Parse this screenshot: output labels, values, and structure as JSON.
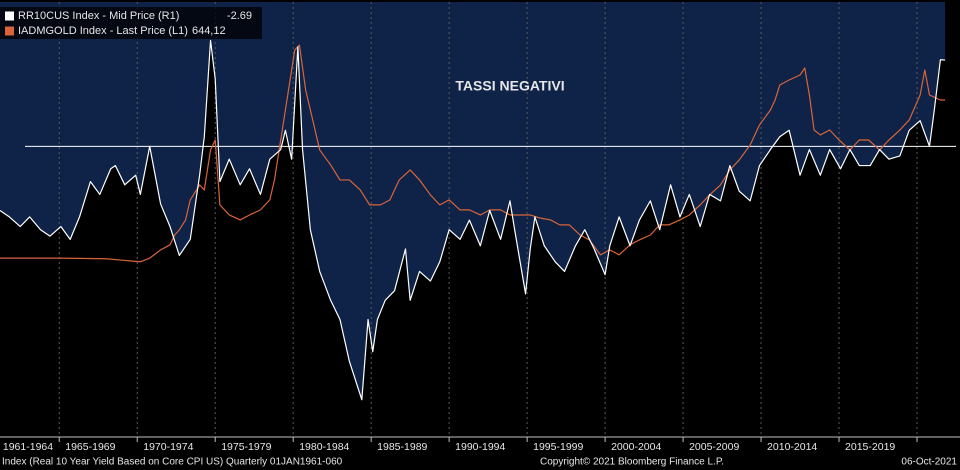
{
  "chart_data": {
    "type": "line",
    "annotation": "TASSI NEGATIVI",
    "footer_left": "Index (Real 10 Year Yield Based on Core CPI US)  Quarterly 01JAN1961-060",
    "footer_center": "Copyright© 2021 Bloomberg Finance L.P.",
    "footer_right": "06-Oct-2021",
    "xlim": [
      1961.2,
      2022.5
    ],
    "xticks": [
      {
        "value": 1961,
        "label": "1961-1964"
      },
      {
        "value": 1965,
        "label": "1965-1969"
      },
      {
        "value": 1970,
        "label": "1970-1974"
      },
      {
        "value": 1975,
        "label": "1975-1979"
      },
      {
        "value": 1980,
        "label": "1980-1984"
      },
      {
        "value": 1985,
        "label": "1985-1989"
      },
      {
        "value": 1990,
        "label": "1990-1994"
      },
      {
        "value": 1995,
        "label": "1995-1999"
      },
      {
        "value": 2000,
        "label": "2000-2004"
      },
      {
        "value": 2005,
        "label": "2005-2009"
      },
      {
        "value": 2010,
        "label": "2010-2014"
      },
      {
        "value": 2015,
        "label": "2015-2019"
      },
      {
        "value": 2020,
        "label": ""
      }
    ],
    "ylim": [
      0.16,
      7300
    ],
    "ylog": true,
    "y2lim": [
      9,
      -4.5
    ],
    "hline": 0,
    "grid": true,
    "legend": "top-left",
    "shade_color": "#0e2347",
    "series": [
      {
        "name": "RR10CUS Index - Mid Price (R1)",
        "color": "#ffffff",
        "axis": "y2",
        "shade": true,
        "last": -2.69,
        "x": [
          1961.2,
          1961.8,
          1962.5,
          1963.1,
          1963.8,
          1964.4,
          1965.1,
          1965.7,
          1966.3,
          1967.0,
          1967.6,
          1968.3,
          1968.6,
          1969.2,
          1969.9,
          1970.2,
          1970.8,
          1971.5,
          1972.1,
          1972.7,
          1973.4,
          1974.0,
          1974.3,
          1974.7,
          1975.0,
          1975.3,
          1975.9,
          1976.6,
          1977.2,
          1977.9,
          1978.5,
          1979.2,
          1979.5,
          1979.9,
          1980.3,
          1980.6,
          1981.1,
          1981.7,
          1982.4,
          1983.0,
          1983.6,
          1984.0,
          1984.4,
          1984.8,
          1985.1,
          1985.4,
          1985.9,
          1986.5,
          1987.2,
          1987.5,
          1988.1,
          1988.8,
          1989.4,
          1990.0,
          1990.7,
          1991.3,
          1992.0,
          1992.6,
          1993.3,
          1993.9,
          1994.2,
          1994.9,
          1995.2,
          1995.5,
          1996.1,
          1996.8,
          1997.4,
          1998.1,
          1998.7,
          1999.3,
          2000.0,
          2000.3,
          2000.9,
          2001.6,
          2002.2,
          2002.9,
          2003.5,
          2004.2,
          2004.8,
          2005.4,
          2006.1,
          2006.7,
          2007.4,
          2008.0,
          2008.6,
          2009.3,
          2009.9,
          2010.6,
          2011.2,
          2011.8,
          2012.5,
          2013.1,
          2013.8,
          2014.4,
          2015.1,
          2015.7,
          2016.3,
          2017.0,
          2017.6,
          2018.2,
          2018.9,
          2019.5,
          2020.2,
          2020.8,
          2021.1,
          2021.5,
          2021.8
        ],
        "values": [
          2.0,
          2.2,
          2.5,
          2.2,
          2.6,
          2.8,
          2.5,
          2.9,
          2.2,
          1.1,
          1.5,
          0.7,
          0.6,
          1.2,
          0.9,
          1.5,
          0.0,
          1.8,
          2.5,
          3.4,
          2.9,
          0.9,
          -0.3,
          -3.3,
          -2.1,
          1.1,
          0.4,
          1.2,
          0.7,
          1.5,
          0.4,
          0.1,
          -0.5,
          0.4,
          -3.1,
          0.1,
          2.6,
          3.9,
          4.8,
          5.4,
          6.7,
          7.3,
          7.9,
          5.4,
          6.4,
          5.4,
          4.8,
          4.5,
          3.2,
          4.8,
          3.9,
          4.2,
          3.6,
          2.6,
          2.9,
          2.3,
          3.1,
          2.0,
          2.9,
          1.7,
          2.6,
          4.6,
          3.2,
          2.2,
          3.1,
          3.6,
          3.9,
          3.1,
          2.6,
          3.2,
          4.0,
          3.1,
          2.2,
          3.1,
          2.3,
          1.7,
          2.6,
          1.2,
          2.2,
          1.5,
          2.5,
          1.5,
          1.7,
          0.6,
          1.4,
          1.7,
          0.6,
          0.1,
          -0.3,
          -0.5,
          0.9,
          0.1,
          0.9,
          0.1,
          0.7,
          0.1,
          0.6,
          0.6,
          0.1,
          0.4,
          0.3,
          -0.5,
          -0.8,
          0.0,
          -1.1,
          -2.7,
          -2.69
        ]
      },
      {
        "name": "IADMGOLD Index - Last Price (L1)",
        "color": "#d9643a",
        "axis": "y",
        "last": 644.12,
        "last_label": "644,12",
        "x": [
          1961.2,
          1965.0,
          1968.0,
          1970.2,
          1970.8,
          1971.5,
          1972.1,
          1972.4,
          1972.7,
          1973.1,
          1973.4,
          1974.0,
          1974.3,
          1974.7,
          1975.0,
          1975.3,
          1975.9,
          1976.6,
          1977.2,
          1977.9,
          1978.5,
          1978.8,
          1979.2,
          1979.5,
          1979.8,
          1980.1,
          1980.4,
          1980.8,
          1981.1,
          1981.7,
          1982.4,
          1983.0,
          1983.6,
          1984.3,
          1984.9,
          1985.6,
          1986.2,
          1986.8,
          1987.5,
          1988.1,
          1988.8,
          1989.4,
          1990.0,
          1990.7,
          1991.3,
          1992.0,
          1992.6,
          1993.3,
          1993.9,
          1994.5,
          1995.2,
          1995.8,
          1996.5,
          1997.1,
          1997.7,
          1998.4,
          1999.0,
          1999.7,
          2000.3,
          2000.9,
          2001.6,
          2002.2,
          2002.9,
          2003.5,
          2004.1,
          2004.8,
          2005.4,
          2006.1,
          2006.7,
          2007.4,
          2008.0,
          2008.6,
          2009.3,
          2009.9,
          2010.6,
          2010.9,
          2011.2,
          2011.8,
          2012.5,
          2012.8,
          2013.1,
          2013.4,
          2013.8,
          2014.4,
          2015.0,
          2015.7,
          2016.3,
          2016.9,
          2017.6,
          2018.2,
          2018.9,
          2019.5,
          2020.2,
          2020.5,
          2020.8,
          2021.5,
          2021.8
        ],
        "values": [
          12.8,
          12.8,
          12.6,
          11.7,
          12.8,
          15.7,
          17.8,
          22.7,
          25.8,
          33.0,
          54.2,
          78.6,
          69.4,
          186.8,
          239,
          47.9,
          37.3,
          33.0,
          37.3,
          42.3,
          54.2,
          88.9,
          239,
          503,
          1057,
          2222,
          2513,
          825,
          503,
          186.8,
          128.8,
          88.9,
          88.9,
          69.4,
          47.9,
          47.9,
          54.2,
          88.9,
          113.8,
          88.9,
          61.3,
          47.9,
          54.2,
          42.3,
          42.3,
          37.3,
          42.3,
          42.3,
          37.3,
          37.3,
          37.3,
          34.7,
          33.0,
          29.2,
          29.2,
          22.7,
          20.1,
          13.9,
          15.7,
          13.9,
          17.8,
          20.1,
          22.7,
          29.2,
          29.2,
          33.0,
          37.3,
          47.9,
          61.3,
          78.6,
          113.8,
          145.9,
          211.3,
          346.9,
          503,
          644.1,
          933,
          1057,
          1196,
          1422,
          729,
          306,
          271,
          306,
          239,
          186.8,
          239,
          239,
          186.8,
          239,
          306,
          392.6,
          729,
          1354,
          729,
          644.1,
          644.12
        ]
      }
    ]
  }
}
